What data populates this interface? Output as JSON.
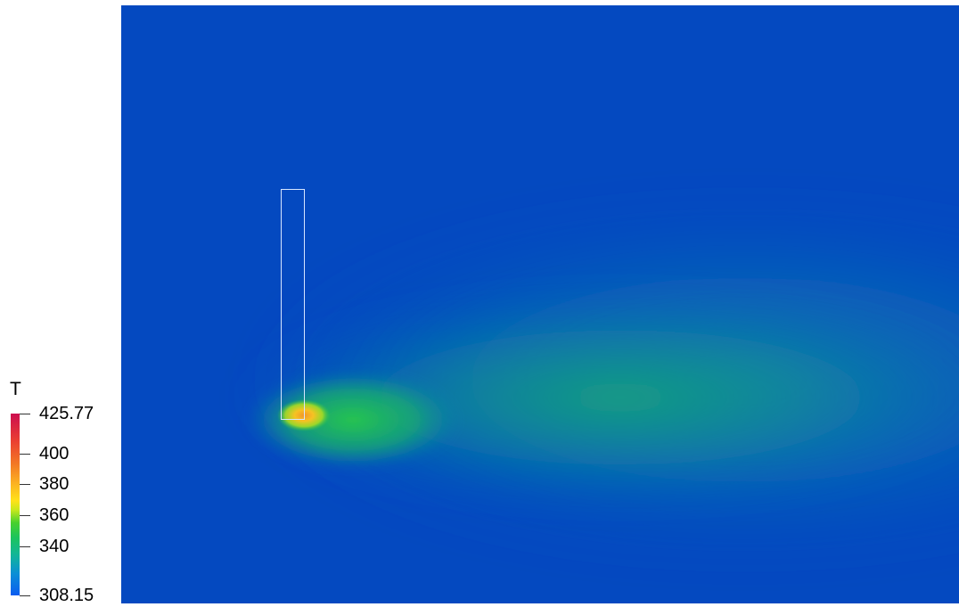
{
  "legend": {
    "title": "T",
    "max": 425.77,
    "min": 308.15,
    "max_label": "425.77",
    "min_label": "308.15",
    "ticks": [
      {
        "value": 400,
        "label": "400"
      },
      {
        "value": 380,
        "label": "380"
      },
      {
        "value": 360,
        "label": "360"
      },
      {
        "value": 340,
        "label": "340"
      }
    ],
    "colormap": [
      "#0b5cf0",
      "#0b8fd6",
      "#12b59a",
      "#1cc45c",
      "#48d12d",
      "#c8e81c",
      "#ffe21a",
      "#fbb022",
      "#f37a25",
      "#ea3f32",
      "#cc0d4f"
    ]
  },
  "scene": {
    "background_color": "#0449c0",
    "hot_core_color": "#f7a52a",
    "outline_color": "#d7e6ff"
  }
}
